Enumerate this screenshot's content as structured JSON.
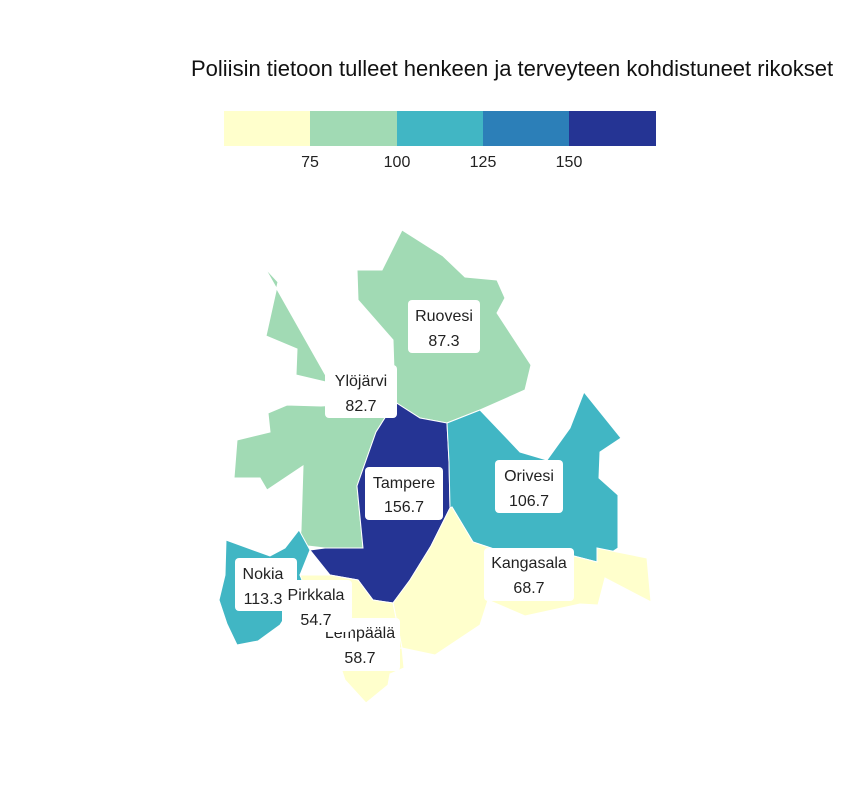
{
  "title": "Poliisin tietoon tulleet henkeen ja terveyteen kohdistuneet rikokset",
  "legend": {
    "colors": [
      "#ffffcc",
      "#a1dab4",
      "#41b6c4",
      "#2c7fb8",
      "#253494"
    ],
    "ticks": [
      "75",
      "100",
      "125",
      "150"
    ]
  },
  "regions": [
    {
      "name": "Ruovesi",
      "value": "87.3",
      "color": "#a1dab4"
    },
    {
      "name": "Ylöjärvi",
      "value": "82.7",
      "color": "#a1dab4"
    },
    {
      "name": "Tampere",
      "value": "156.7",
      "color": "#253494"
    },
    {
      "name": "Orivesi",
      "value": "106.7",
      "color": "#41b6c4"
    },
    {
      "name": "Kangasala",
      "value": "68.7",
      "color": "#ffffcc"
    },
    {
      "name": "Nokia",
      "value": "113.3",
      "color": "#41b6c4"
    },
    {
      "name": "Pirkkala",
      "value": "54.7",
      "color": "#ffffcc"
    },
    {
      "name": "Lempäälä",
      "value": "58.7",
      "color": "#ffffcc"
    }
  ]
}
